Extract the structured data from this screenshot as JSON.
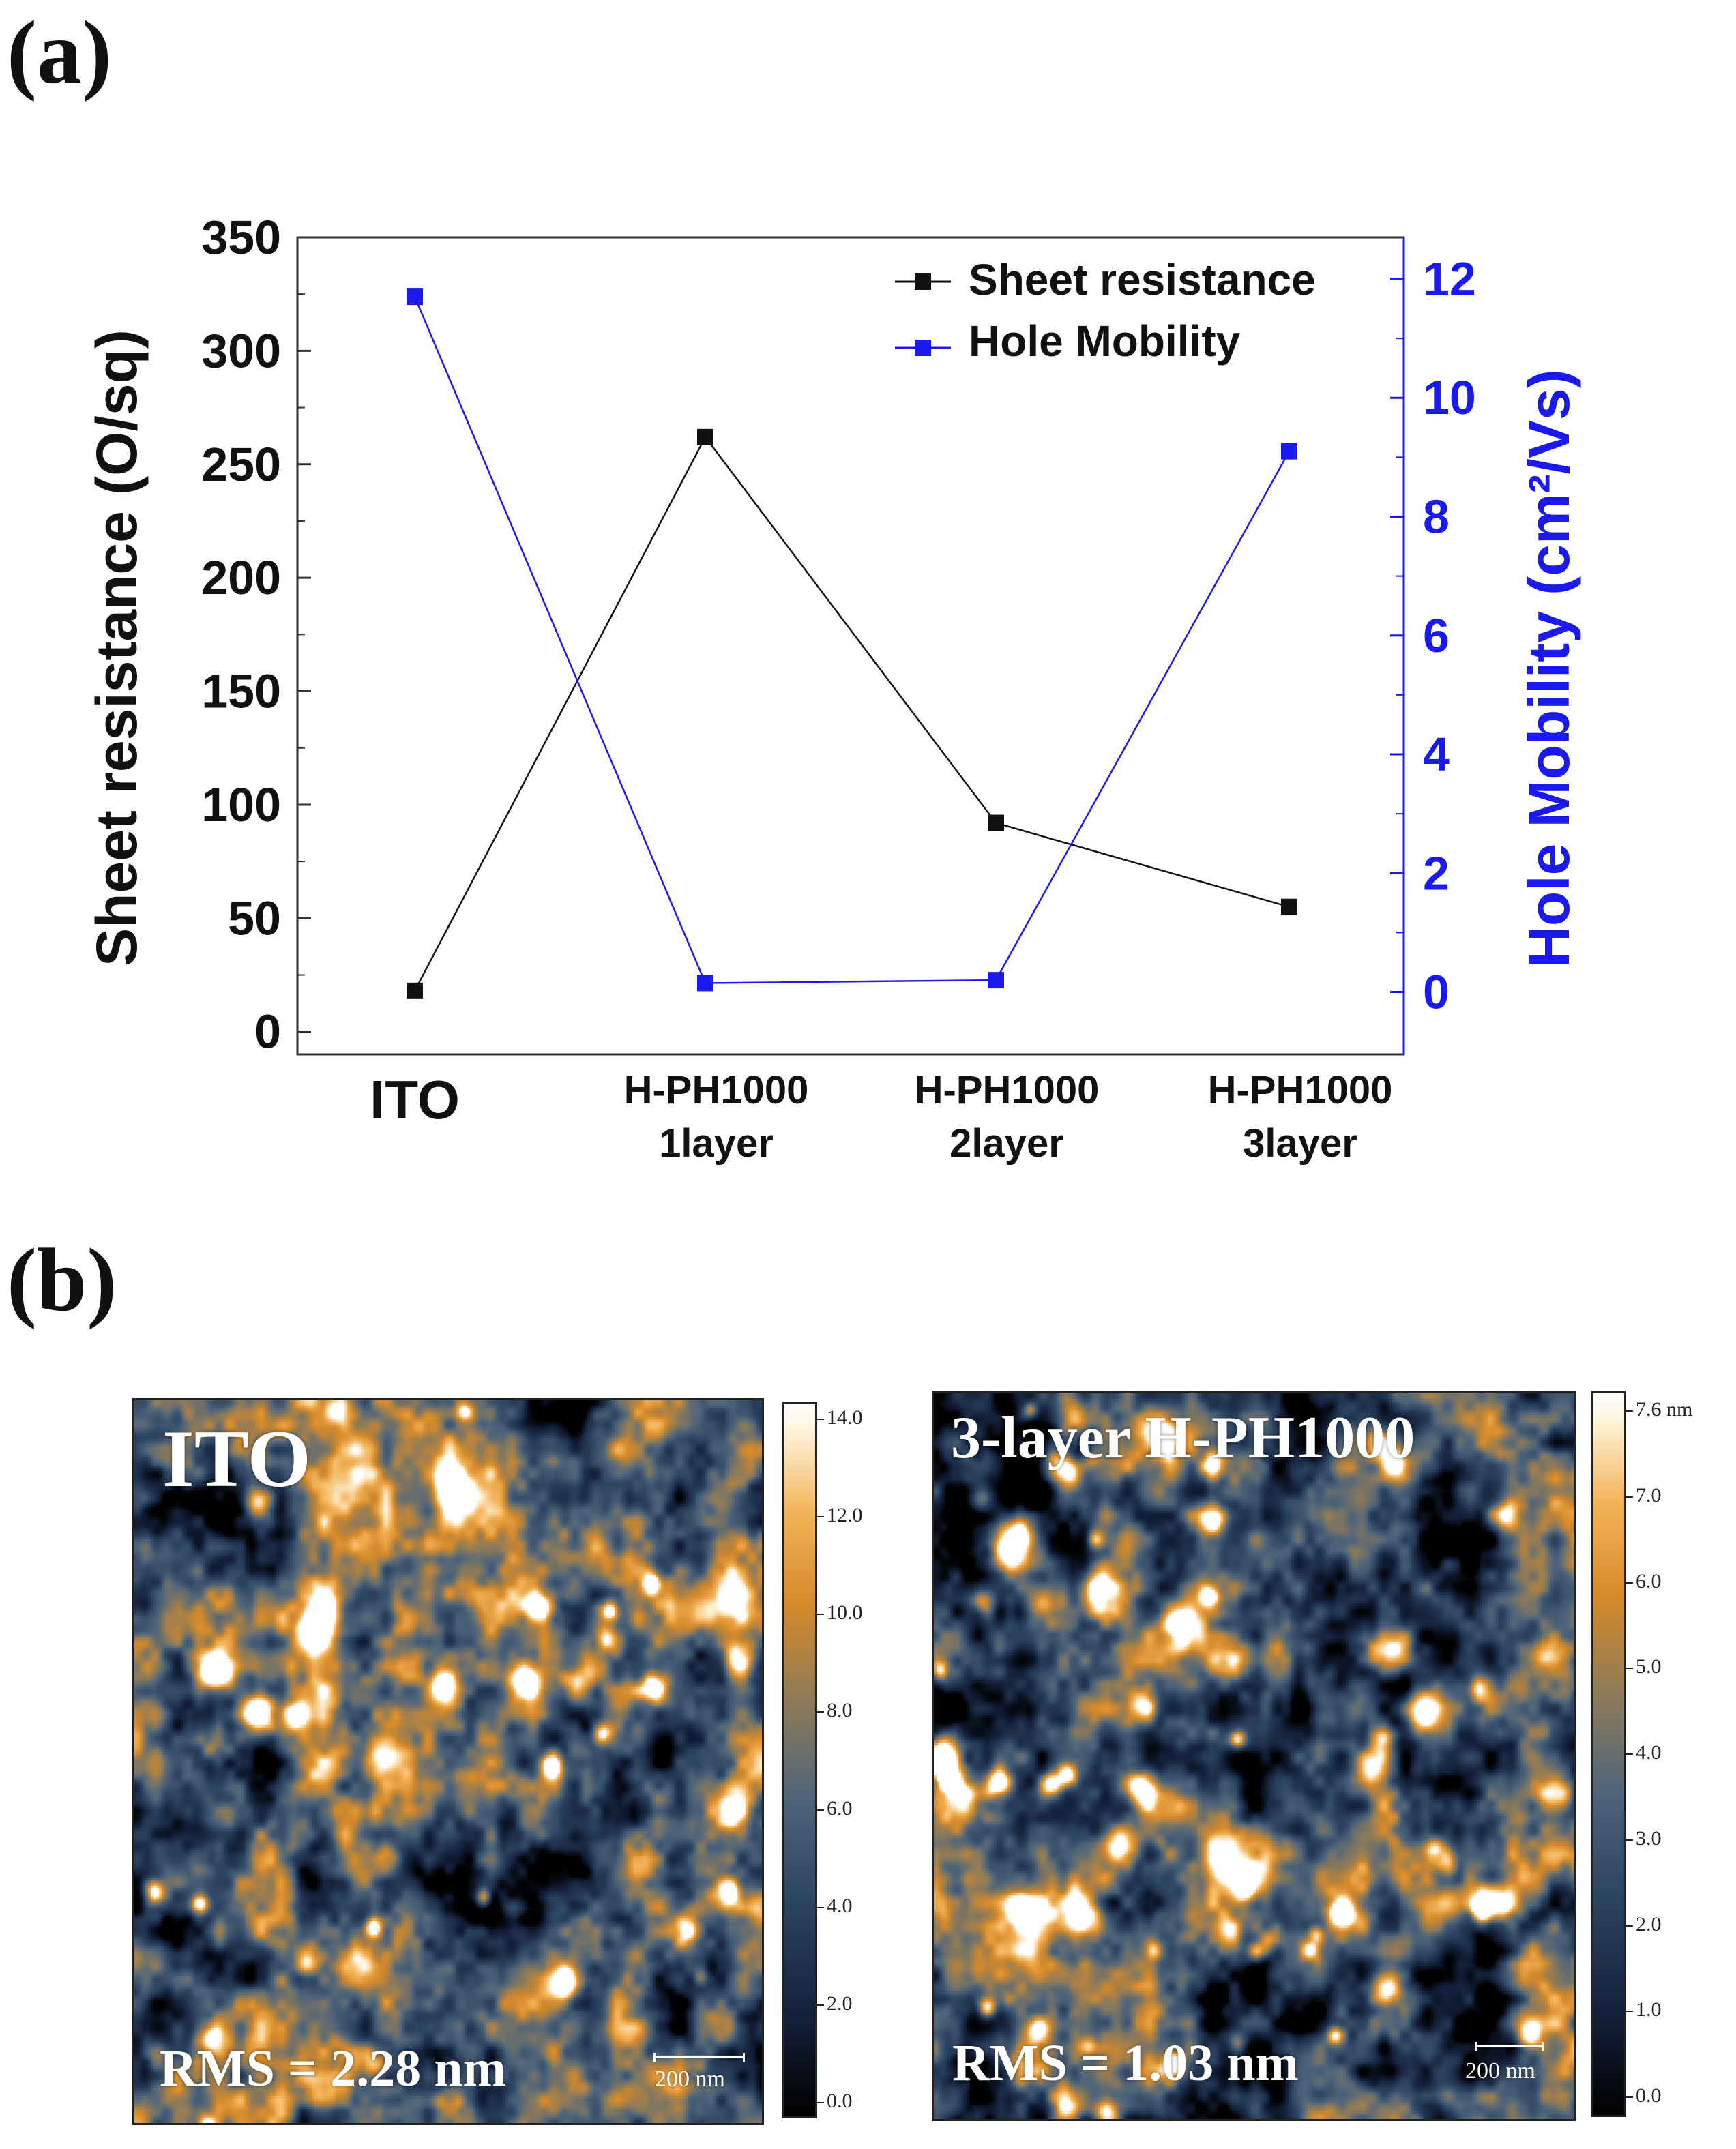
{
  "panels": {
    "a": "(a)",
    "b": "(b)"
  },
  "colors": {
    "sheet": "#111111",
    "mobility": "#1a1aee",
    "axis_right": "#1a1aee"
  },
  "chart_data": {
    "type": "line",
    "categories": [
      "ITO",
      "H-PH1000\n1layer",
      "H-PH1000\n2layer",
      "H-PH1000\n3layer"
    ],
    "category_lines": [
      [
        "ITO"
      ],
      [
        "H-PH1000",
        "1layer"
      ],
      [
        "H-PH1000",
        "2layer"
      ],
      [
        "H-PH1000",
        "3layer"
      ]
    ],
    "series": [
      {
        "name": "Sheet resistance",
        "axis": "left",
        "values": [
          18,
          262,
          92,
          55
        ],
        "color": "#111111"
      },
      {
        "name": "Hole Mobility",
        "axis": "right",
        "values": [
          11.7,
          0.15,
          0.2,
          9.1
        ],
        "color": "#1a1aee"
      }
    ],
    "ylabel_left": "Sheet resistance (O/sq)",
    "ylabel_right": "Hole Mobility (cm²/Vs)",
    "ylim_left": [
      -10,
      350
    ],
    "ylim_right": [
      -1.05,
      12.7
    ],
    "yticks_left": [
      0,
      50,
      100,
      150,
      200,
      250,
      300,
      350
    ],
    "yticks_right": [
      0,
      2,
      4,
      6,
      8,
      10,
      12
    ],
    "legend_position": "top-right"
  },
  "afm": {
    "left": {
      "title": "ITO",
      "rms": "RMS =  2.28 nm",
      "scalebar": "200 nm",
      "colorbar_ticks": [
        "14.0",
        "12.0",
        "10.0",
        "8.0",
        "6.0",
        "4.0",
        "2.0",
        "0.0"
      ],
      "seed": 7
    },
    "right": {
      "title": "3-layer H-PH1000",
      "rms": "RMS =  1.03 nm",
      "scalebar": "200 nm",
      "colorbar_ticks": [
        "7.6 nm",
        "7.0",
        "6.0",
        "5.0",
        "4.0",
        "3.0",
        "2.0",
        "1.0",
        "0.0"
      ],
      "seed": 19
    }
  }
}
